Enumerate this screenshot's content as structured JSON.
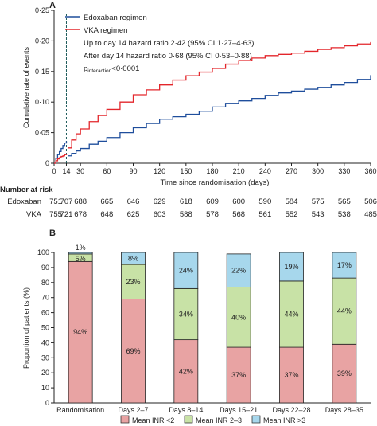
{
  "panel_a": {
    "panel_label": "A",
    "legend": {
      "edoxaban": "Edoxaban regimen",
      "vka": "VKA regimen",
      "line1": "Up to day 14 hazard ratio 2·42 (95% CI 1·27–4·63)",
      "line2": "After day 14 hazard ratio 0·68 (95% CI 0·53–0·88)",
      "p_prefix": "p",
      "p_sub": "interaction",
      "p_value": "<0·0001"
    },
    "risk_table": {
      "title": "Number at risk",
      "rows": [
        {
          "label": "Edoxaban",
          "values": [
            "751",
            "707",
            "688",
            "665",
            "646",
            "629",
            "618",
            "609",
            "600",
            "590",
            "584",
            "575",
            "565",
            "506"
          ]
        },
        {
          "label": "VKA",
          "values": [
            "755",
            "721",
            "678",
            "648",
            "625",
            "603",
            "588",
            "578",
            "568",
            "561",
            "552",
            "543",
            "538",
            "485"
          ]
        }
      ]
    }
  },
  "panel_b": {
    "panel_label": "B",
    "top_label": "1%",
    "legend": [
      "Mean INR <2",
      "Mean INR 2–3",
      "Mean INR >3"
    ]
  },
  "colors": {
    "edoxaban": "#1f4e9c",
    "vka": "#e3262b",
    "inr_low": "#e8a3a3",
    "inr_mid": "#c8e2a6",
    "inr_high": "#a7d7ec"
  },
  "chart_data": [
    {
      "type": "line",
      "xlabel": "Time since randomisation (days)",
      "ylabel": "Cumulative rate of events",
      "xlim": [
        0,
        360
      ],
      "ylim": [
        0,
        0.25
      ],
      "xticks": [
        0,
        14,
        30,
        60,
        90,
        120,
        150,
        180,
        210,
        240,
        270,
        300,
        330,
        360
      ],
      "ytick_labels": [
        "0",
        "0·05",
        "0·10",
        "0·15",
        "0·20",
        "0·25"
      ],
      "yticks": [
        0,
        0.05,
        0.1,
        0.15,
        0.2,
        0.25
      ],
      "reference_line_x": 14,
      "series": [
        {
          "name": "Edoxaban regimen",
          "x": [
            0,
            2,
            4,
            6,
            8,
            10,
            12,
            14,
            16,
            20,
            25,
            30,
            40,
            50,
            60,
            75,
            90,
            105,
            120,
            135,
            150,
            165,
            180,
            195,
            210,
            225,
            240,
            255,
            270,
            285,
            300,
            315,
            330,
            345,
            360
          ],
          "y": [
            0,
            0.008,
            0.014,
            0.019,
            0.024,
            0.029,
            0.033,
            0.036,
            0.012,
            0.016,
            0.02,
            0.024,
            0.031,
            0.036,
            0.042,
            0.05,
            0.058,
            0.065,
            0.072,
            0.076,
            0.08,
            0.085,
            0.092,
            0.098,
            0.102,
            0.106,
            0.111,
            0.115,
            0.118,
            0.121,
            0.124,
            0.128,
            0.132,
            0.137,
            0.144
          ]
        },
        {
          "name": "VKA regimen",
          "x": [
            0,
            2,
            4,
            6,
            8,
            10,
            12,
            14,
            16,
            20,
            25,
            30,
            40,
            50,
            60,
            75,
            90,
            105,
            120,
            135,
            150,
            165,
            180,
            195,
            210,
            225,
            240,
            255,
            270,
            285,
            300,
            315,
            330,
            345,
            360
          ],
          "y": [
            0,
            0.004,
            0.007,
            0.009,
            0.011,
            0.012,
            0.014,
            0.015,
            0.025,
            0.038,
            0.048,
            0.056,
            0.068,
            0.078,
            0.088,
            0.1,
            0.112,
            0.12,
            0.128,
            0.136,
            0.143,
            0.149,
            0.155,
            0.162,
            0.168,
            0.172,
            0.176,
            0.178,
            0.18,
            0.183,
            0.186,
            0.189,
            0.192,
            0.195,
            0.198
          ]
        }
      ]
    },
    {
      "type": "bar",
      "stacked": true,
      "ylabel": "Proportion of patients (%)",
      "ylim": [
        0,
        100
      ],
      "yticks": [
        0,
        10,
        20,
        30,
        40,
        50,
        60,
        70,
        80,
        90,
        100
      ],
      "categories": [
        "Randomisation",
        "Days 2–7",
        "Days 8–14",
        "Days 15–21",
        "Days 22–28",
        "Days 28–35"
      ],
      "series": [
        {
          "name": "Mean INR <2",
          "values": [
            94,
            69,
            42,
            37,
            37,
            39
          ],
          "labels": [
            "94%",
            "69%",
            "42%",
            "37%",
            "37%",
            "39%"
          ]
        },
        {
          "name": "Mean INR 2–3",
          "values": [
            5,
            23,
            34,
            40,
            44,
            44
          ],
          "labels": [
            "5%",
            "23%",
            "34%",
            "40%",
            "44%",
            "44%"
          ]
        },
        {
          "name": "Mean INR >3",
          "values": [
            1,
            8,
            24,
            22,
            19,
            17
          ],
          "labels": [
            "1%",
            "8%",
            "24%",
            "22%",
            "19%",
            "17%"
          ]
        }
      ]
    }
  ]
}
